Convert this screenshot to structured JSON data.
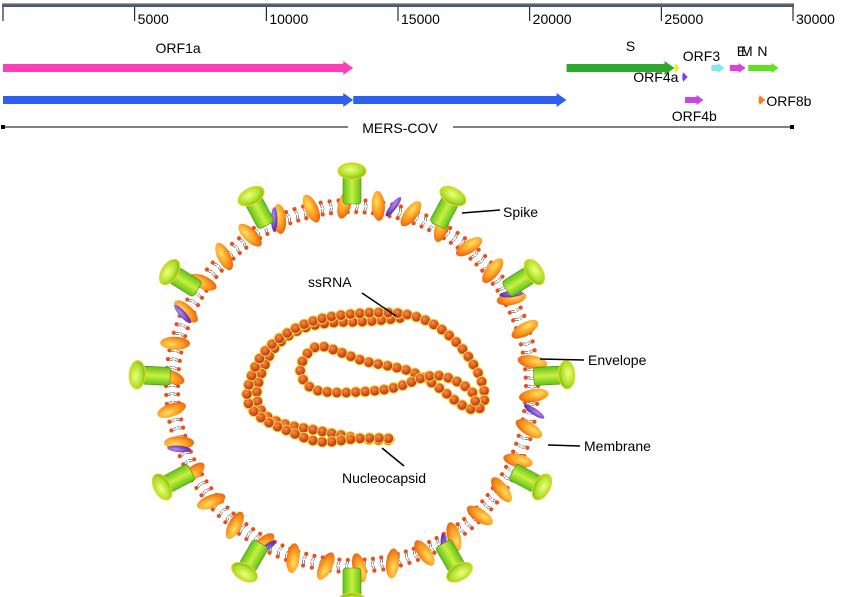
{
  "genome_map": {
    "axis": {
      "ticks": [
        0,
        5000,
        10000,
        15000,
        20000,
        25000,
        30000
      ],
      "tick_labels": [
        "",
        "5000",
        "10000",
        "15000",
        "20000",
        "25000",
        "30000"
      ]
    },
    "genes": [
      {
        "name": "ORF1a",
        "label": "ORF1a",
        "start": 0,
        "end": 13300,
        "row": 1,
        "color": "#ff3fb8"
      },
      {
        "name": "ORF1b-a",
        "label": "",
        "start": 0,
        "end": 13300,
        "row": 2,
        "color": "#2f5ff0"
      },
      {
        "name": "ORF1b-b",
        "label": "",
        "start": 13300,
        "end": 21400,
        "row": 2,
        "color": "#2f5ff0"
      },
      {
        "name": "S",
        "label": "S",
        "start": 21400,
        "end": 25500,
        "row": 1,
        "color": "#2fa82f"
      },
      {
        "name": "ORF3",
        "label": "ORF3",
        "start": 25500,
        "end": 25700,
        "row": 1,
        "color": "#f0f020"
      },
      {
        "name": "ORF4a",
        "label": "ORF4a",
        "start": 25800,
        "end": 26000,
        "row": 1.5,
        "color": "#7a3ff0"
      },
      {
        "name": "ORF4b",
        "label": "ORF4b",
        "start": 25900,
        "end": 26600,
        "row": 2,
        "color": "#c845e8"
      },
      {
        "name": "E",
        "label": "E",
        "start": 26900,
        "end": 27400,
        "row": 1,
        "color": "#7fe8e8"
      },
      {
        "name": "M",
        "label": "M",
        "start": 27600,
        "end": 28200,
        "row": 1,
        "color": "#e040e0"
      },
      {
        "name": "N",
        "label": "N",
        "start": 28300,
        "end": 29450,
        "row": 1,
        "color": "#60e020"
      },
      {
        "name": "ORF8b",
        "label": "ORF8b",
        "start": 28700,
        "end": 28950,
        "row": 2,
        "color": "#ff7a20"
      }
    ],
    "genome_label": "MERS-COV",
    "genome_length": 30000
  },
  "virion": {
    "labels": {
      "spike": "Spike",
      "envelope": "Envelope",
      "membrane": "Membrane",
      "ssrna": "ssRNA",
      "nucleocapsid": "Nucleocapsid"
    },
    "colors": {
      "spike": "#9ae61e",
      "spike_head": "#d6f040",
      "membrane_protein": "#ff9a1f",
      "envelope_protein": "#7a3fd0",
      "lipid_head": "#e6501e",
      "nucleocapsid_bead": "#e0451a",
      "rna": "#f0d040"
    }
  }
}
